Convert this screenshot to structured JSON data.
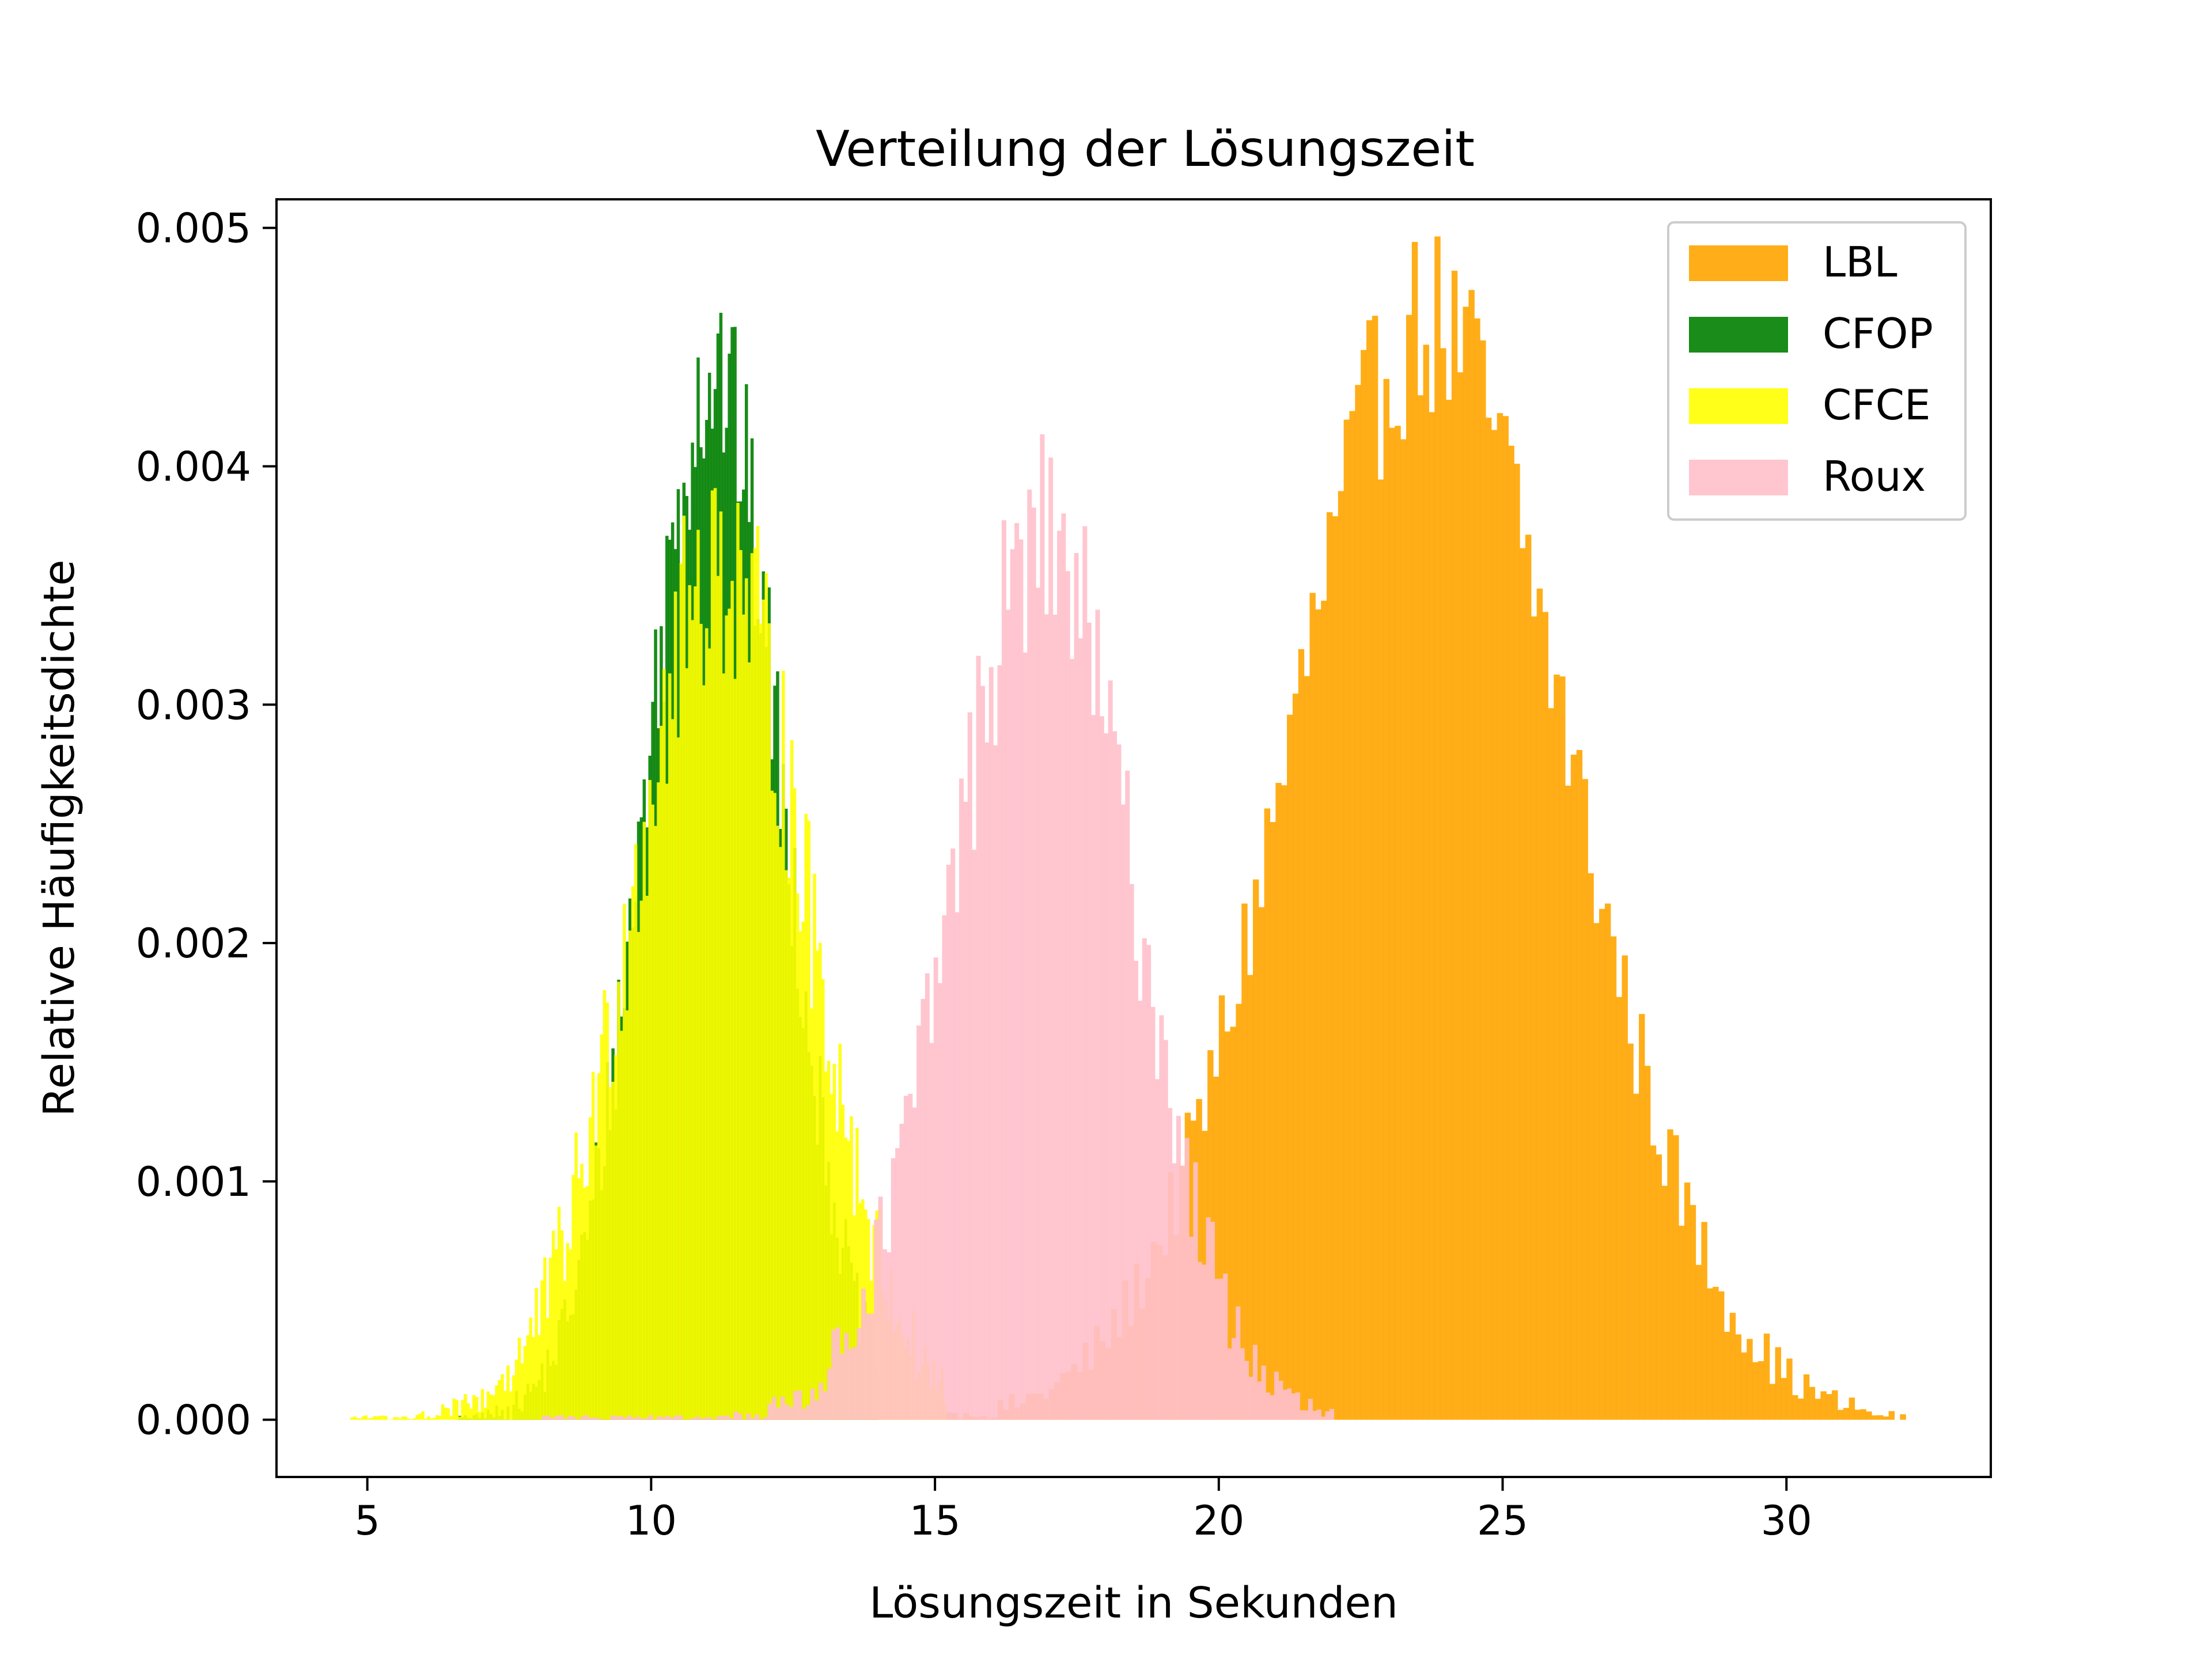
{
  "chart_data": {
    "type": "histogram",
    "title": "Verteilung der Lösungszeit",
    "xlabel": "Lösungszeit in Sekunden",
    "ylabel": "Relative Häufigkeitsdichte",
    "xlim": [
      3.4,
      33.6
    ],
    "ylim": [
      -0.00024,
      0.00512
    ],
    "x_ticks": [
      {
        "value": 5,
        "label": "5"
      },
      {
        "value": 10,
        "label": "10"
      },
      {
        "value": 15,
        "label": "15"
      },
      {
        "value": 20,
        "label": "20"
      },
      {
        "value": 25,
        "label": "25"
      },
      {
        "value": 30,
        "label": "30"
      }
    ],
    "y_ticks": [
      {
        "value": 0.0,
        "label": "0.000"
      },
      {
        "value": 0.001,
        "label": "0.001"
      },
      {
        "value": 0.002,
        "label": "0.002"
      },
      {
        "value": 0.003,
        "label": "0.003"
      },
      {
        "value": 0.004,
        "label": "0.004"
      },
      {
        "value": 0.005,
        "label": "0.005"
      }
    ],
    "grid": false,
    "legend": {
      "placement": "top-right"
    },
    "series": [
      {
        "name": "LBL",
        "color": "#ffa500",
        "alpha": 0.9,
        "range": [
          10.7,
          32.1
        ],
        "bin_width": 0.1,
        "shape": {
          "mean": 23.7,
          "sd": 2.5,
          "peak": 0.0046,
          "jitter": 0.00042
        }
      },
      {
        "name": "CFOP",
        "color": "#008000",
        "alpha": 0.9,
        "range": [
          6.6,
          14.0
        ],
        "bin_width": 0.05,
        "shape": {
          "mean": 11.1,
          "sd": 1.2,
          "peak": 0.0044,
          "jitter": 0.00045
        }
      },
      {
        "name": "CFCE",
        "color": "#ffff00",
        "alpha": 0.9,
        "range": [
          4.7,
          15.2
        ],
        "bin_width": 0.05,
        "shape": {
          "mean": 11.2,
          "sd": 1.55,
          "peak": 0.0036,
          "jitter": 0.0005
        }
      },
      {
        "name": "Roux",
        "color": "#ffc0cb",
        "alpha": 0.9,
        "range": [
          8.0,
          22.0
        ],
        "bin_width": 0.075,
        "shape": {
          "mean": 16.9,
          "sd": 1.6,
          "peak": 0.0037,
          "jitter": 0.00045
        }
      }
    ]
  }
}
